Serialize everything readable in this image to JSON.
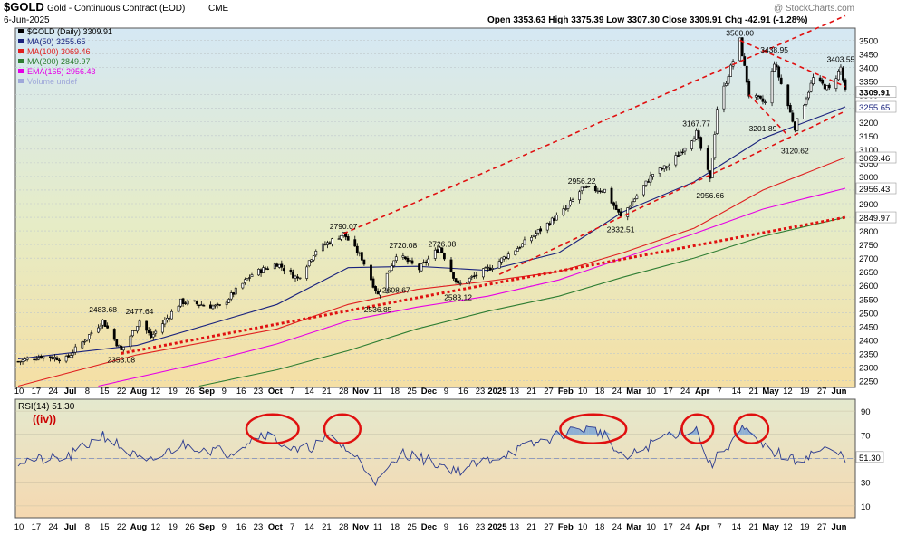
{
  "header": {
    "symbol": "$GOLD",
    "name": "Gold - Continuous Contract (EOD)",
    "exchange": "CME",
    "date": "6-Jun-2025",
    "ohlc": "Open 3353.63  High 3375.39  Low 3307.30  Close 3309.91  Chg -42.91 (-1.28%)",
    "watermark": "@ StockCharts.com"
  },
  "legend": [
    {
      "text": "$GOLD (Daily) 3309.91",
      "color": "#000000"
    },
    {
      "text": "MA(50) 3255.65",
      "color": "#1a237e"
    },
    {
      "text": "MA(100) 3069.46",
      "color": "#e02020"
    },
    {
      "text": "MA(200) 2849.97",
      "color": "#2e7d32"
    },
    {
      "text": "EMA(165) 2956.43",
      "color": "#e600e6"
    },
    {
      "text": "Volume undef",
      "color": "#9fa8da"
    }
  ],
  "price_badges": [
    {
      "text": "3309.91",
      "value": 3309.91,
      "bg": "#ffffff",
      "fg": "#000000",
      "bold": true
    },
    {
      "text": "3255.65",
      "value": 3255.65,
      "bg": "#ffffff",
      "fg": "#1a237e"
    },
    {
      "text": "3069.46",
      "value": 3069.46,
      "bg": "#ffffff",
      "fg": "#000000"
    },
    {
      "text": "2956.43",
      "value": 2956.43,
      "bg": "#ffffff",
      "fg": "#000000"
    },
    {
      "text": "2849.97",
      "value": 2849.97,
      "bg": "#ffffff",
      "fg": "#000000"
    }
  ],
  "rsi": {
    "label": "RSI(14) 51.30",
    "badge": "51.30",
    "wave_label": "((iv))",
    "yticks": [
      90,
      70,
      50,
      30,
      10
    ],
    "ylim": [
      0,
      100
    ],
    "upper": 70,
    "lower": 30,
    "current": 51.3
  },
  "x_labels": [
    "10",
    "17",
    "24",
    "Jul",
    "8",
    "15",
    "22",
    "Aug",
    "12",
    "19",
    "26",
    "Sep",
    "9",
    "16",
    "23",
    "Oct",
    "7",
    "14",
    "21",
    "28",
    "Nov",
    "11",
    "18",
    "25",
    "Dec",
    "9",
    "16",
    "23",
    "2025",
    "13",
    "21",
    "27",
    "Feb",
    "10",
    "18",
    "24",
    "Mar",
    "10",
    "17",
    "24",
    "Apr",
    "7",
    "14",
    "21",
    "May",
    "12",
    "19",
    "27",
    "Jun"
  ],
  "chart_data": {
    "type": "candlestick",
    "title": "$GOLD Gold - Continuous Contract (EOD)",
    "y_ticks": [
      3500,
      3450,
      3400,
      3350,
      3300,
      3250,
      3200,
      3150,
      3100,
      3050,
      3000,
      2950,
      2900,
      2850,
      2800,
      2750,
      2700,
      2650,
      2600,
      2550,
      2500,
      2450,
      2400,
      2350,
      2300,
      2250
    ],
    "ylim": [
      2225,
      3545
    ],
    "x_range": [
      "2024-06-10",
      "2025-06-06"
    ],
    "price_path": [
      [
        "2024-06-10",
        2320
      ],
      [
        "2024-06-20",
        2340
      ],
      [
        "2024-07-01",
        2330
      ],
      [
        "2024-07-17",
        2470
      ],
      [
        "2024-07-25",
        2360
      ],
      [
        "2024-08-02",
        2470
      ],
      [
        "2024-08-07",
        2410
      ],
      [
        "2024-08-20",
        2540
      ],
      [
        "2024-09-06",
        2520
      ],
      [
        "2024-09-20",
        2640
      ],
      [
        "2024-10-01",
        2680
      ],
      [
        "2024-10-10",
        2625
      ],
      [
        "2024-10-18",
        2730
      ],
      [
        "2024-10-30",
        2790
      ],
      [
        "2024-11-07",
        2700
      ],
      [
        "2024-11-14",
        2565
      ],
      [
        "2024-11-22",
        2715
      ],
      [
        "2024-12-02",
        2660
      ],
      [
        "2024-12-11",
        2740
      ],
      [
        "2024-12-19",
        2600
      ],
      [
        "2025-01-02",
        2665
      ],
      [
        "2025-01-16",
        2750
      ],
      [
        "2025-02-04",
        2880
      ],
      [
        "2025-02-11",
        2955
      ],
      [
        "2025-02-21",
        2950
      ],
      [
        "2025-02-28",
        2850
      ],
      [
        "2025-03-14",
        3010
      ],
      [
        "2025-03-21",
        3040
      ],
      [
        "2025-04-02",
        3160
      ],
      [
        "2025-04-08",
        2985
      ],
      [
        "2025-04-11",
        3250
      ],
      [
        "2025-04-21",
        3500
      ],
      [
        "2025-04-25",
        3300
      ],
      [
        "2025-05-02",
        3270
      ],
      [
        "2025-05-06",
        3420
      ],
      [
        "2025-05-15",
        3180
      ],
      [
        "2025-05-23",
        3360
      ],
      [
        "2025-05-30",
        3320
      ],
      [
        "2025-06-04",
        3400
      ],
      [
        "2025-06-06",
        3310
      ]
    ],
    "annotations": [
      {
        "text": "2483.68",
        "date": "2024-07-17",
        "price": 2483.68
      },
      {
        "text": "2477.64",
        "date": "2024-08-02",
        "price": 2477.64
      },
      {
        "text": "2353.08",
        "date": "2024-07-25",
        "price": 2353.08
      },
      {
        "text": "2790.07",
        "date": "2024-10-30",
        "price": 2790.07
      },
      {
        "text": "2720.08",
        "date": "2024-11-25",
        "price": 2720.08
      },
      {
        "text": "2726.08",
        "date": "2024-12-12",
        "price": 2726.08
      },
      {
        "text": "2608.67",
        "date": "2024-11-22",
        "price": 2608.67
      },
      {
        "text": "2536.85",
        "date": "2024-11-14",
        "price": 2536.85
      },
      {
        "text": "2583.12",
        "date": "2024-12-19",
        "price": 2583.12
      },
      {
        "text": "2956.22",
        "date": "2025-02-11",
        "price": 2956.22
      },
      {
        "text": "2832.51",
        "date": "2025-02-28",
        "price": 2832.51
      },
      {
        "text": "3167.77",
        "date": "2025-04-02",
        "price": 3167.77
      },
      {
        "text": "2956.66",
        "date": "2025-04-08",
        "price": 2956.66
      },
      {
        "text": "3500.00",
        "date": "2025-04-21",
        "price": 3500.0
      },
      {
        "text": "3438.95",
        "date": "2025-05-06",
        "price": 3438.95
      },
      {
        "text": "3201.89",
        "date": "2025-05-01",
        "price": 3201.89
      },
      {
        "text": "3120.62",
        "date": "2025-05-15",
        "price": 3120.62
      },
      {
        "text": "3403.55",
        "date": "2025-06-04",
        "price": 3403.55
      }
    ],
    "moving_averages": [
      {
        "name": "MA(50)",
        "color": "#1a237e",
        "points": [
          [
            "2024-06-10",
            2330
          ],
          [
            "2024-08-01",
            2380
          ],
          [
            "2024-10-01",
            2530
          ],
          [
            "2024-11-01",
            2665
          ],
          [
            "2024-12-01",
            2670
          ],
          [
            "2025-01-01",
            2655
          ],
          [
            "2025-02-01",
            2720
          ],
          [
            "2025-03-01",
            2870
          ],
          [
            "2025-04-01",
            2980
          ],
          [
            "2025-05-01",
            3140
          ],
          [
            "2025-06-06",
            3255.65
          ]
        ]
      },
      {
        "name": "MA(100)",
        "color": "#e02020",
        "points": [
          [
            "2024-06-10",
            2230
          ],
          [
            "2024-08-01",
            2345
          ],
          [
            "2024-10-01",
            2440
          ],
          [
            "2024-11-01",
            2530
          ],
          [
            "2024-12-01",
            2585
          ],
          [
            "2025-01-01",
            2615
          ],
          [
            "2025-02-01",
            2650
          ],
          [
            "2025-03-01",
            2720
          ],
          [
            "2025-04-01",
            2810
          ],
          [
            "2025-05-01",
            2950
          ],
          [
            "2025-06-06",
            3069.46
          ]
        ]
      },
      {
        "name": "EMA(165)",
        "color": "#e600e6",
        "points": [
          [
            "2024-07-15",
            2230
          ],
          [
            "2024-09-01",
            2320
          ],
          [
            "2024-10-01",
            2385
          ],
          [
            "2024-11-01",
            2470
          ],
          [
            "2024-12-01",
            2520
          ],
          [
            "2025-01-01",
            2560
          ],
          [
            "2025-02-01",
            2620
          ],
          [
            "2025-03-01",
            2700
          ],
          [
            "2025-04-01",
            2790
          ],
          [
            "2025-05-01",
            2880
          ],
          [
            "2025-06-06",
            2956.43
          ]
        ]
      },
      {
        "name": "MA(200)",
        "color": "#2e7d32",
        "points": [
          [
            "2024-08-28",
            2230
          ],
          [
            "2024-10-01",
            2290
          ],
          [
            "2024-11-01",
            2360
          ],
          [
            "2024-12-01",
            2440
          ],
          [
            "2025-01-01",
            2505
          ],
          [
            "2025-02-01",
            2560
          ],
          [
            "2025-03-01",
            2630
          ],
          [
            "2025-04-01",
            2700
          ],
          [
            "2025-05-01",
            2780
          ],
          [
            "2025-06-06",
            2849.97
          ]
        ]
      }
    ],
    "trend_lines": [
      {
        "style": "dashed",
        "from": [
          "2024-10-30",
          2790
        ],
        "to": [
          "2025-06-06",
          3590
        ]
      },
      {
        "style": "dashed",
        "from": [
          "2025-01-06",
          2640
        ],
        "to": [
          "2025-06-06",
          3240
        ]
      },
      {
        "style": "dashed",
        "from": [
          "2025-04-21",
          3500
        ],
        "to": [
          "2025-06-06",
          3330
        ]
      },
      {
        "style": "dashed",
        "from": [
          "2025-04-25",
          3300
        ],
        "to": [
          "2025-05-12",
          3150
        ]
      },
      {
        "style": "dotted",
        "from": [
          "2024-07-25",
          2350
        ],
        "to": [
          "2025-06-06",
          2850
        ]
      }
    ],
    "rsi_path": [
      [
        "2024-06-10",
        48
      ],
      [
        "2024-07-01",
        50
      ],
      [
        "2024-07-17",
        70
      ],
      [
        "2024-08-05",
        45
      ],
      [
        "2024-08-20",
        62
      ],
      [
        "2024-09-10",
        55
      ],
      [
        "2024-09-25",
        72
      ],
      [
        "2024-10-10",
        55
      ],
      [
        "2024-10-25",
        68
      ],
      [
        "2024-11-05",
        50
      ],
      [
        "2024-11-14",
        30
      ],
      [
        "2024-11-25",
        55
      ],
      [
        "2024-12-19",
        40
      ],
      [
        "2025-01-15",
        58
      ],
      [
        "2025-02-10",
        76
      ],
      [
        "2025-02-20",
        72
      ],
      [
        "2025-03-01",
        48
      ],
      [
        "2025-03-20",
        70
      ],
      [
        "2025-04-02",
        75
      ],
      [
        "2025-04-08",
        44
      ],
      [
        "2025-04-22",
        75
      ],
      [
        "2025-05-01",
        60
      ],
      [
        "2025-05-15",
        48
      ],
      [
        "2025-05-27",
        58
      ],
      [
        "2025-06-06",
        51.3
      ]
    ],
    "rsi_highlights": [
      {
        "from": "2024-09-20",
        "to": "2024-10-08"
      },
      {
        "from": "2024-10-24",
        "to": "2024-11-04"
      },
      {
        "from": "2025-02-04",
        "to": "2025-02-28"
      },
      {
        "from": "2025-03-29",
        "to": "2025-04-07"
      },
      {
        "from": "2025-04-21",
        "to": "2025-05-01"
      }
    ]
  }
}
